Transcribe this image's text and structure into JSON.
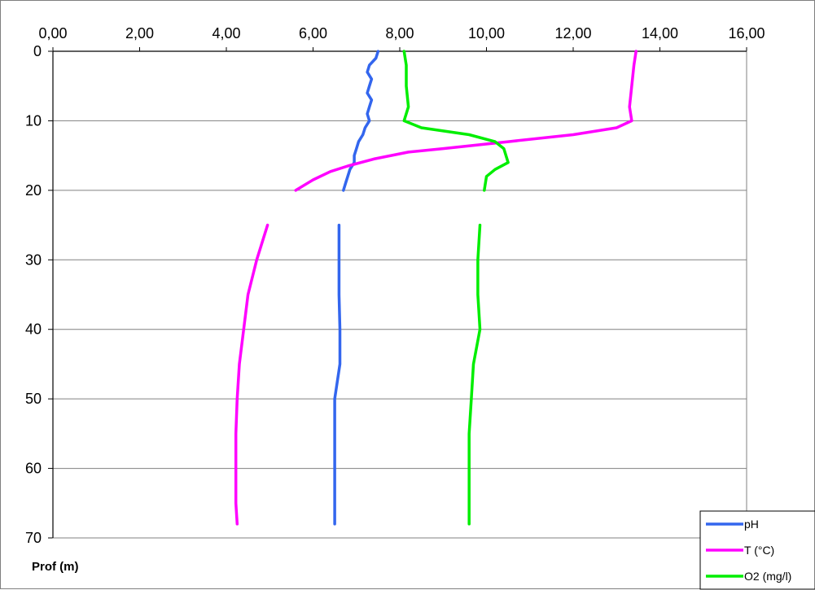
{
  "chart_data": {
    "type": "line",
    "orientation": "depth-profile",
    "title": "",
    "xlabel": "",
    "ylabel": "Prof (m)",
    "xlim": [
      0,
      16
    ],
    "ylim": [
      0,
      70
    ],
    "y_inverted": true,
    "x_axis_position": "top",
    "x_ticks": [
      "0,00",
      "2,00",
      "4,00",
      "6,00",
      "8,00",
      "10,00",
      "12,00",
      "14,00",
      "16,00"
    ],
    "y_ticks": [
      "0",
      "10",
      "20",
      "30",
      "40",
      "50",
      "60",
      "70"
    ],
    "grid": "horizontal",
    "legend": "bottom-right",
    "series": [
      {
        "name": "pH",
        "color": "#3366ee",
        "segments": [
          [
            [
              7.5,
              0
            ],
            [
              7.45,
              1
            ],
            [
              7.3,
              2
            ],
            [
              7.25,
              3
            ],
            [
              7.35,
              4
            ],
            [
              7.3,
              5
            ],
            [
              7.25,
              6
            ],
            [
              7.35,
              7
            ],
            [
              7.3,
              8
            ],
            [
              7.25,
              9
            ],
            [
              7.3,
              10
            ],
            [
              7.2,
              11
            ],
            [
              7.15,
              12
            ],
            [
              7.05,
              13
            ],
            [
              7.0,
              14
            ],
            [
              6.95,
              15
            ],
            [
              6.95,
              16
            ],
            [
              6.85,
              17
            ],
            [
              6.8,
              18
            ],
            [
              6.75,
              19
            ],
            [
              6.7,
              20
            ]
          ],
          [
            [
              6.6,
              25
            ],
            [
              6.6,
              30
            ],
            [
              6.6,
              35
            ],
            [
              6.62,
              40
            ],
            [
              6.62,
              45
            ],
            [
              6.5,
              50
            ],
            [
              6.5,
              55
            ],
            [
              6.5,
              60
            ],
            [
              6.5,
              65
            ],
            [
              6.5,
              68
            ]
          ]
        ]
      },
      {
        "name": "T (°C)",
        "color": "#ff00ff",
        "segments": [
          [
            [
              13.45,
              0
            ],
            [
              13.4,
              2
            ],
            [
              13.35,
              5
            ],
            [
              13.3,
              8
            ],
            [
              13.35,
              10
            ],
            [
              13.0,
              11
            ],
            [
              12.0,
              12
            ],
            [
              10.5,
              13
            ],
            [
              9.0,
              14
            ],
            [
              8.2,
              14.5
            ],
            [
              7.4,
              15.5
            ],
            [
              6.8,
              16.5
            ],
            [
              6.4,
              17.3
            ],
            [
              6.0,
              18.5
            ],
            [
              5.6,
              20
            ]
          ],
          [
            [
              4.95,
              25
            ],
            [
              4.7,
              30
            ],
            [
              4.5,
              35
            ],
            [
              4.4,
              40
            ],
            [
              4.3,
              45
            ],
            [
              4.25,
              50
            ],
            [
              4.22,
              55
            ],
            [
              4.22,
              60
            ],
            [
              4.22,
              65
            ],
            [
              4.25,
              68
            ]
          ]
        ]
      },
      {
        "name": "O2 (mg/l)",
        "color": "#00ee00",
        "segments": [
          [
            [
              8.1,
              0
            ],
            [
              8.15,
              2
            ],
            [
              8.15,
              5
            ],
            [
              8.2,
              8
            ],
            [
              8.1,
              10
            ],
            [
              8.5,
              11
            ],
            [
              9.6,
              12
            ],
            [
              10.2,
              13
            ],
            [
              10.4,
              14
            ],
            [
              10.5,
              16
            ],
            [
              10.2,
              17
            ],
            [
              10.0,
              18
            ],
            [
              9.95,
              20
            ]
          ],
          [
            [
              9.85,
              25
            ],
            [
              9.8,
              30
            ],
            [
              9.8,
              35
            ],
            [
              9.85,
              40
            ],
            [
              9.7,
              45
            ],
            [
              9.65,
              50
            ],
            [
              9.6,
              55
            ],
            [
              9.6,
              60
            ],
            [
              9.6,
              65
            ],
            [
              9.6,
              68
            ]
          ]
        ]
      }
    ]
  }
}
